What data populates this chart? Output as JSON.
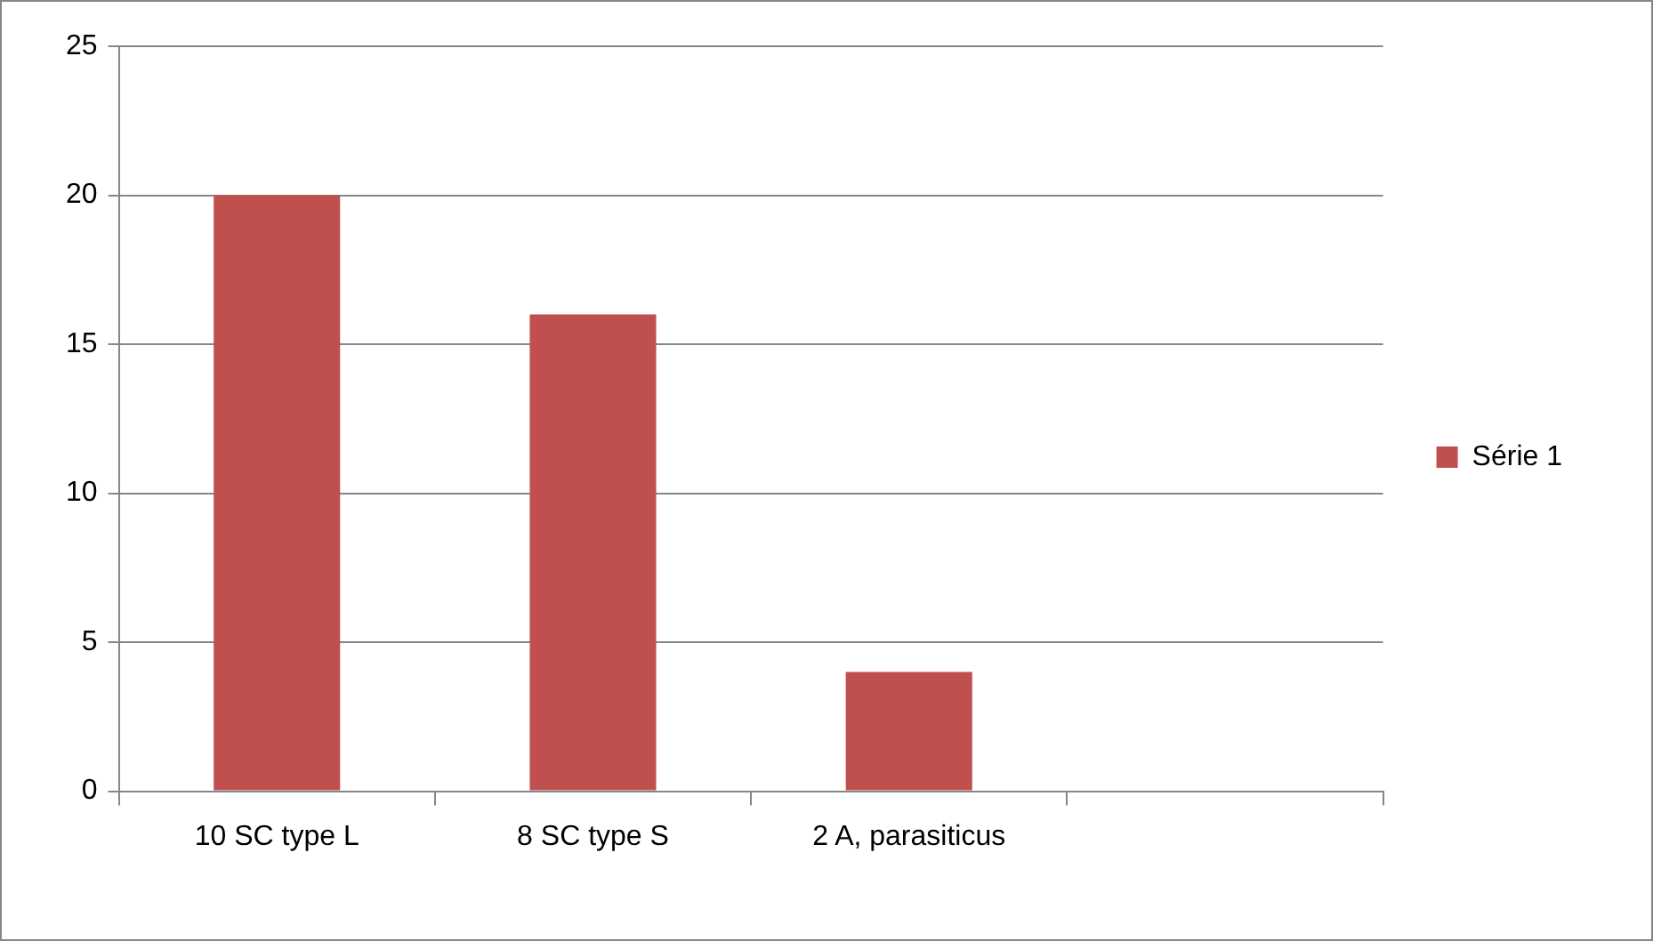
{
  "chart_data": {
    "type": "bar",
    "categories": [
      "10 SC type L",
      "8 SC type S",
      "2 A, parasiticus",
      null
    ],
    "series": [
      {
        "name": "Série 1",
        "color": "#c0504d",
        "values": [
          20,
          16,
          4,
          null
        ]
      }
    ],
    "ylim": [
      0,
      25
    ],
    "yticks": [
      0,
      5,
      10,
      15,
      20,
      25
    ],
    "grid": "y",
    "legend": "right"
  }
}
